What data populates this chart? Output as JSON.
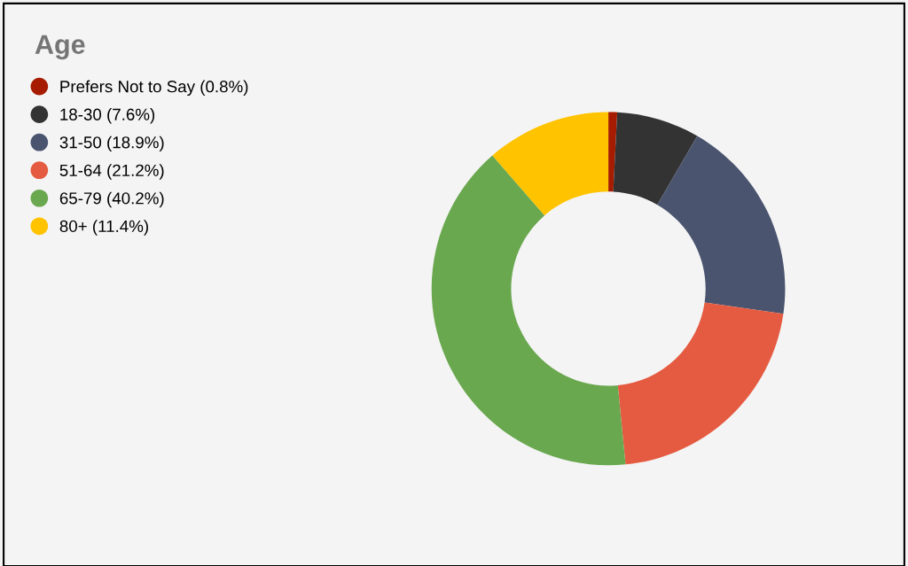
{
  "chart_data": {
    "type": "donut",
    "title": "Age",
    "categories": [
      "Prefers Not to Say (0.8%)",
      "18-30 (7.6%)",
      "31-50 (18.9%)",
      "51-64 (21.2%)",
      "65-79 (40.2%)",
      "80+ (11.4%)"
    ],
    "values": [
      0.8,
      7.6,
      18.9,
      21.2,
      40.2,
      11.4
    ],
    "colors": [
      "#a61c00",
      "#333333",
      "#4a546e",
      "#e55b41",
      "#6aa84f",
      "#ffc300"
    ],
    "legend": "top left"
  }
}
